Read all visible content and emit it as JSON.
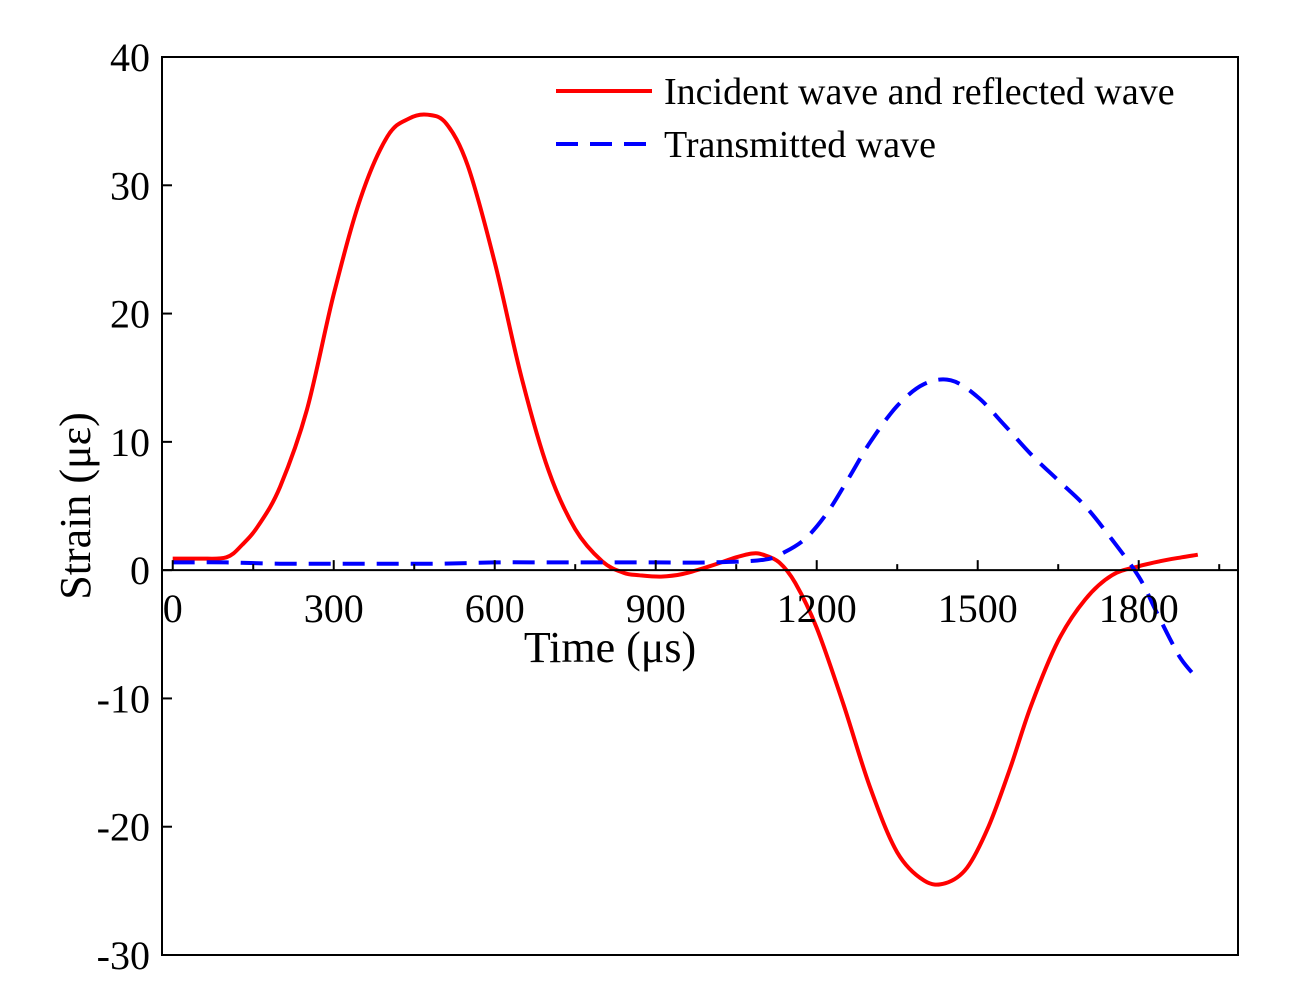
{
  "chart_data": {
    "type": "line",
    "title": "",
    "xlabel": "Time (μs)",
    "ylabel": "Strain (με)",
    "xlim": [
      -20,
      1985
    ],
    "ylim": [
      -30,
      40
    ],
    "x_ticks": [
      0,
      300,
      600,
      900,
      1200,
      1500,
      1800
    ],
    "x_tick_labels": [
      "0",
      "300",
      "600",
      "900",
      "1200",
      "1500",
      "1800"
    ],
    "y_ticks": [
      -30,
      -20,
      -10,
      0,
      10,
      20,
      30,
      40
    ],
    "y_tick_labels": [
      "-30",
      "-20",
      "-10",
      "0",
      "10",
      "20",
      "30",
      "40"
    ],
    "grid": false,
    "legend_position": "top-right",
    "series": [
      {
        "name": "Incident wave and reflected wave",
        "color": "#ff0000",
        "style": "solid",
        "x": [
          0,
          50,
          100,
          130,
          160,
          200,
          250,
          300,
          350,
          400,
          440,
          475,
          510,
          550,
          600,
          650,
          700,
          750,
          800,
          840,
          870,
          910,
          950,
          1000,
          1050,
          1080,
          1100,
          1130,
          1160,
          1200,
          1250,
          1300,
          1350,
          1400,
          1440,
          1480,
          1520,
          1560,
          1600,
          1650,
          1700,
          1750,
          1800,
          1840,
          1880,
          1910
        ],
        "y": [
          0.9,
          0.9,
          1.0,
          2.0,
          3.5,
          6.5,
          12.5,
          21.5,
          29.0,
          33.8,
          35.2,
          35.5,
          34.8,
          31.5,
          24.0,
          15.0,
          7.8,
          3.2,
          0.7,
          -0.2,
          -0.4,
          -0.5,
          -0.3,
          0.3,
          1.0,
          1.3,
          1.2,
          0.6,
          -1.0,
          -4.5,
          -10.5,
          -17.0,
          -22.0,
          -24.2,
          -24.4,
          -23.2,
          -20.0,
          -15.5,
          -10.5,
          -5.5,
          -2.3,
          -0.4,
          0.3,
          0.7,
          1.0,
          1.2
        ]
      },
      {
        "name": "Transmitted wave",
        "color": "#0000ff",
        "style": "dashed",
        "x": [
          0,
          100,
          200,
          300,
          400,
          500,
          600,
          700,
          800,
          900,
          1000,
          1100,
          1140,
          1180,
          1220,
          1260,
          1300,
          1350,
          1400,
          1450,
          1500,
          1550,
          1600,
          1650,
          1700,
          1750,
          1800,
          1830,
          1860,
          1880,
          1910
        ],
        "y": [
          0.6,
          0.6,
          0.5,
          0.5,
          0.5,
          0.5,
          0.6,
          0.6,
          0.6,
          0.6,
          0.6,
          0.8,
          1.4,
          2.5,
          4.5,
          7.2,
          10.0,
          12.8,
          14.5,
          14.8,
          13.5,
          11.3,
          9.0,
          7.0,
          5.0,
          2.4,
          -0.5,
          -3.0,
          -5.5,
          -7.0,
          -8.5
        ]
      }
    ]
  }
}
